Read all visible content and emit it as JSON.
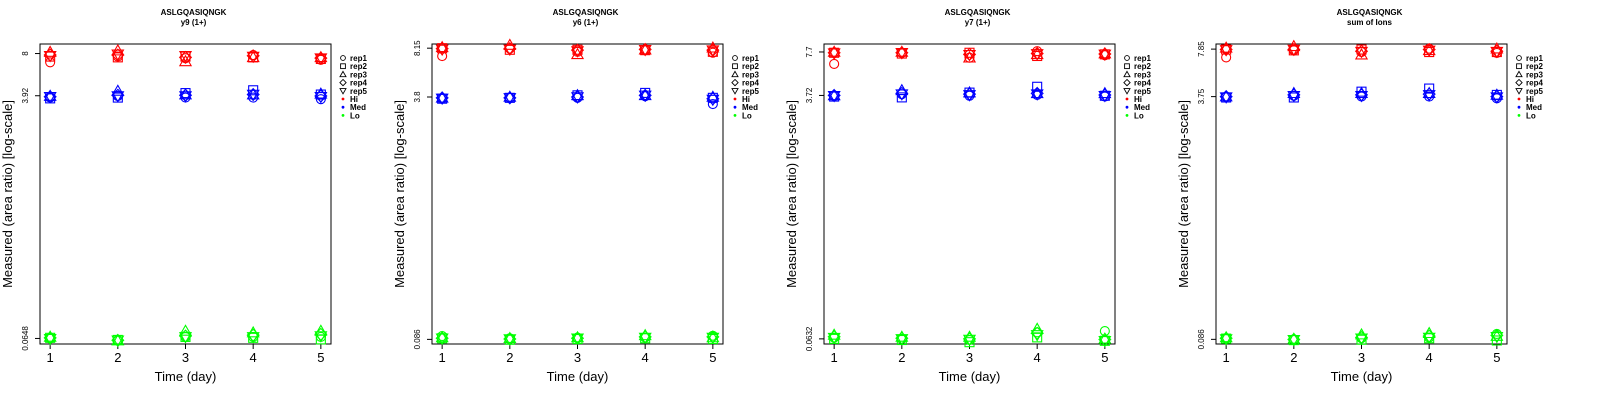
{
  "colors": {
    "Hi": "#ff0000",
    "Med": "#0000ff",
    "Lo": "#00ff00"
  },
  "legend": {
    "shapes": [
      {
        "label": "rep1",
        "marker": "circle"
      },
      {
        "label": "rep2",
        "marker": "square"
      },
      {
        "label": "rep3",
        "marker": "triangle-up"
      },
      {
        "label": "rep4",
        "marker": "diamond"
      },
      {
        "label": "rep5",
        "marker": "triangle-down"
      }
    ],
    "groups": [
      {
        "label": "Hi",
        "color": "#ff0000"
      },
      {
        "label": "Med",
        "color": "#0000ff"
      },
      {
        "label": "Lo",
        "color": "#00ff00"
      }
    ]
  },
  "chart_data": [
    {
      "type": "scatter",
      "title": "ASLGQASIQNGK",
      "subtitle": "y9 (1+)",
      "xlabel": "Time (day)",
      "ylabel": "Measured (area ratio) [log-scale]",
      "x": [
        1,
        2,
        3,
        4,
        5
      ],
      "yscale": "log",
      "ylim": [
        0.059,
        9.4
      ],
      "yticks": [
        0.0648,
        3.92,
        8
      ],
      "ytick_labels": [
        "0.0648",
        "3.92",
        "8"
      ],
      "series": [
        {
          "name": "rep1",
          "group": "Hi",
          "marker": "circle",
          "values": [
            6.9,
            7.6,
            7.4,
            7.8,
            7.2
          ]
        },
        {
          "name": "rep2",
          "group": "Hi",
          "marker": "square",
          "values": [
            7.6,
            7.5,
            7.6,
            7.5,
            7.3
          ]
        },
        {
          "name": "rep3",
          "group": "Hi",
          "marker": "triangle-up",
          "values": [
            8.2,
            8.4,
            7.0,
            7.5,
            7.5
          ]
        },
        {
          "name": "rep4",
          "group": "Hi",
          "marker": "diamond",
          "values": [
            7.8,
            7.8,
            7.5,
            7.7,
            7.4
          ]
        },
        {
          "name": "rep5",
          "group": "Hi",
          "marker": "triangle-down",
          "values": [
            7.7,
            7.9,
            7.7,
            7.6,
            7.4
          ]
        },
        {
          "name": "rep1",
          "group": "Med",
          "marker": "circle",
          "values": [
            3.8,
            3.9,
            3.8,
            3.8,
            3.7
          ]
        },
        {
          "name": "rep2",
          "group": "Med",
          "marker": "square",
          "values": [
            3.75,
            3.8,
            4.1,
            4.3,
            4.0
          ]
        },
        {
          "name": "rep3",
          "group": "Med",
          "marker": "triangle-up",
          "values": [
            3.9,
            4.25,
            4.0,
            4.0,
            4.05
          ]
        },
        {
          "name": "rep4",
          "group": "Med",
          "marker": "diamond",
          "values": [
            3.85,
            3.95,
            3.95,
            4.0,
            3.9
          ]
        },
        {
          "name": "rep5",
          "group": "Med",
          "marker": "triangle-down",
          "values": [
            3.85,
            3.9,
            3.9,
            4.0,
            3.85
          ]
        },
        {
          "name": "rep1",
          "group": "Lo",
          "marker": "circle",
          "values": [
            0.0648,
            0.0625,
            0.0665,
            0.0665,
            0.0665
          ]
        },
        {
          "name": "rep2",
          "group": "Lo",
          "marker": "square",
          "values": [
            0.0655,
            0.0632,
            0.0665,
            0.0655,
            0.0638
          ]
        },
        {
          "name": "rep3",
          "group": "Lo",
          "marker": "triangle-up",
          "values": [
            0.0665,
            0.0625,
            0.0735,
            0.0715,
            0.0735
          ]
        },
        {
          "name": "rep4",
          "group": "Lo",
          "marker": "diamond",
          "values": [
            0.0655,
            0.0628,
            0.0675,
            0.0685,
            0.0695
          ]
        },
        {
          "name": "rep5",
          "group": "Lo",
          "marker": "triangle-down",
          "values": [
            0.0645,
            0.0628,
            0.0665,
            0.0665,
            0.0675
          ]
        }
      ]
    },
    {
      "type": "scatter",
      "title": "ASLGQASIQNGK",
      "subtitle": "y6 (1+)",
      "xlabel": "Time (day)",
      "ylabel": "Measured (area ratio) [log-scale]",
      "x": [
        1,
        2,
        3,
        4,
        5
      ],
      "yscale": "log",
      "ylim": [
        0.08,
        8.7
      ],
      "yticks": [
        0.086,
        3.8,
        8.15
      ],
      "ytick_labels": [
        "0.086",
        "3.8",
        "8.15"
      ],
      "series": [
        {
          "name": "rep1",
          "group": "Hi",
          "marker": "circle",
          "values": [
            7.2,
            8.1,
            7.7,
            7.9,
            7.6
          ]
        },
        {
          "name": "rep2",
          "group": "Hi",
          "marker": "square",
          "values": [
            8.15,
            7.95,
            7.95,
            7.9,
            7.7
          ]
        },
        {
          "name": "rep3",
          "group": "Hi",
          "marker": "triangle-up",
          "values": [
            8.25,
            8.55,
            7.4,
            7.95,
            8.2
          ]
        },
        {
          "name": "rep4",
          "group": "Hi",
          "marker": "diamond",
          "values": [
            8.1,
            8.1,
            7.9,
            8.0,
            7.9
          ]
        },
        {
          "name": "rep5",
          "group": "Hi",
          "marker": "triangle-down",
          "values": [
            8.0,
            8.0,
            7.8,
            7.95,
            7.9
          ]
        },
        {
          "name": "rep1",
          "group": "Med",
          "marker": "circle",
          "values": [
            3.7,
            3.75,
            3.75,
            3.85,
            3.4
          ]
        },
        {
          "name": "rep2",
          "group": "Med",
          "marker": "square",
          "values": [
            3.7,
            3.75,
            3.9,
            4.05,
            3.75
          ]
        },
        {
          "name": "rep3",
          "group": "Med",
          "marker": "triangle-up",
          "values": [
            3.75,
            3.8,
            3.9,
            3.9,
            3.8
          ]
        },
        {
          "name": "rep4",
          "group": "Med",
          "marker": "diamond",
          "values": [
            3.75,
            3.75,
            3.8,
            3.9,
            3.7
          ]
        },
        {
          "name": "rep5",
          "group": "Med",
          "marker": "triangle-down",
          "values": [
            3.72,
            3.75,
            3.8,
            3.9,
            3.65
          ]
        },
        {
          "name": "rep1",
          "group": "Lo",
          "marker": "circle",
          "values": [
            0.0905,
            0.0875,
            0.0885,
            0.0885,
            0.091
          ]
        },
        {
          "name": "rep2",
          "group": "Lo",
          "marker": "square",
          "values": [
            0.0875,
            0.0855,
            0.0865,
            0.0875,
            0.0865
          ]
        },
        {
          "name": "rep3",
          "group": "Lo",
          "marker": "triangle-up",
          "values": [
            0.0885,
            0.0875,
            0.0885,
            0.0915,
            0.0885
          ]
        },
        {
          "name": "rep4",
          "group": "Lo",
          "marker": "diamond",
          "values": [
            0.0875,
            0.0865,
            0.0875,
            0.0895,
            0.0895
          ]
        },
        {
          "name": "rep5",
          "group": "Lo",
          "marker": "triangle-down",
          "values": [
            0.0875,
            0.0865,
            0.0875,
            0.0885,
            0.0885
          ]
        }
      ]
    },
    {
      "type": "scatter",
      "title": "ASLGQASIQNGK",
      "subtitle": "y7 (1+)",
      "xlabel": "Time (day)",
      "ylabel": "Measured (area ratio) [log-scale]",
      "x": [
        1,
        2,
        3,
        4,
        5
      ],
      "yscale": "log",
      "ylim": [
        0.058,
        8.8
      ],
      "yticks": [
        0.0632,
        3.72,
        7.7
      ],
      "ytick_labels": [
        "0.0632",
        "3.72",
        "7.7"
      ],
      "series": [
        {
          "name": "rep1",
          "group": "Hi",
          "marker": "circle",
          "values": [
            6.3,
            7.6,
            7.0,
            7.8,
            7.3
          ]
        },
        {
          "name": "rep2",
          "group": "Hi",
          "marker": "square",
          "values": [
            7.6,
            7.5,
            7.6,
            7.2,
            7.4
          ]
        },
        {
          "name": "rep3",
          "group": "Hi",
          "marker": "triangle-up",
          "values": [
            7.7,
            7.7,
            7.0,
            7.4,
            7.5
          ]
        },
        {
          "name": "rep4",
          "group": "Hi",
          "marker": "diamond",
          "values": [
            7.6,
            7.6,
            7.4,
            7.5,
            7.45
          ]
        },
        {
          "name": "rep5",
          "group": "Hi",
          "marker": "triangle-down",
          "values": [
            7.55,
            7.6,
            7.35,
            7.45,
            7.4
          ]
        },
        {
          "name": "rep1",
          "group": "Med",
          "marker": "circle",
          "values": [
            3.7,
            3.8,
            3.7,
            3.75,
            3.65
          ]
        },
        {
          "name": "rep2",
          "group": "Med",
          "marker": "square",
          "values": [
            3.65,
            3.6,
            3.9,
            4.3,
            3.7
          ]
        },
        {
          "name": "rep3",
          "group": "Med",
          "marker": "triangle-up",
          "values": [
            3.72,
            4.05,
            3.9,
            3.85,
            3.85
          ]
        },
        {
          "name": "rep4",
          "group": "Med",
          "marker": "diamond",
          "values": [
            3.72,
            3.85,
            3.8,
            3.85,
            3.75
          ]
        },
        {
          "name": "rep5",
          "group": "Med",
          "marker": "triangle-down",
          "values": [
            3.7,
            3.8,
            3.75,
            3.8,
            3.7
          ]
        },
        {
          "name": "rep1",
          "group": "Lo",
          "marker": "circle",
          "values": [
            0.0645,
            0.0632,
            0.062,
            0.0705,
            0.072
          ]
        },
        {
          "name": "rep2",
          "group": "Lo",
          "marker": "square",
          "values": [
            0.0632,
            0.062,
            0.0598,
            0.0648,
            0.0612
          ]
        },
        {
          "name": "rep3",
          "group": "Lo",
          "marker": "triangle-up",
          "values": [
            0.0675,
            0.0652,
            0.0652,
            0.0745,
            0.0632
          ]
        },
        {
          "name": "rep4",
          "group": "Lo",
          "marker": "diamond",
          "values": [
            0.0655,
            0.0638,
            0.0632,
            0.0695,
            0.0625
          ]
        },
        {
          "name": "rep5",
          "group": "Lo",
          "marker": "triangle-down",
          "values": [
            0.0645,
            0.0632,
            0.0625,
            0.0675,
            0.0612
          ]
        }
      ]
    },
    {
      "type": "scatter",
      "title": "ASLGQASIQNGK",
      "subtitle": "sum of Ions",
      "xlabel": "Time (day)",
      "ylabel": "Measured (area ratio) [log-scale]",
      "x": [
        1,
        2,
        3,
        4,
        5
      ],
      "yscale": "log",
      "ylim": [
        0.08,
        8.5
      ],
      "yticks": [
        0.086,
        3.75,
        7.85
      ],
      "ytick_labels": [
        "0.086",
        "3.75",
        "7.85"
      ],
      "series": [
        {
          "name": "rep1",
          "group": "Hi",
          "marker": "circle",
          "values": [
            6.9,
            7.7,
            7.5,
            7.9,
            7.4
          ]
        },
        {
          "name": "rep2",
          "group": "Hi",
          "marker": "square",
          "values": [
            7.8,
            7.7,
            7.8,
            7.5,
            7.5
          ]
        },
        {
          "name": "rep3",
          "group": "Hi",
          "marker": "triangle-up",
          "values": [
            8.0,
            8.2,
            7.2,
            7.7,
            7.9
          ]
        },
        {
          "name": "rep4",
          "group": "Hi",
          "marker": "diamond",
          "values": [
            7.8,
            7.8,
            7.6,
            7.8,
            7.6
          ]
        },
        {
          "name": "rep5",
          "group": "Hi",
          "marker": "triangle-down",
          "values": [
            7.75,
            7.8,
            7.55,
            7.7,
            7.55
          ]
        },
        {
          "name": "rep1",
          "group": "Med",
          "marker": "circle",
          "values": [
            3.75,
            3.8,
            3.75,
            3.75,
            3.65
          ]
        },
        {
          "name": "rep2",
          "group": "Med",
          "marker": "square",
          "values": [
            3.7,
            3.7,
            4.05,
            4.25,
            3.85
          ]
        },
        {
          "name": "rep3",
          "group": "Med",
          "marker": "triangle-up",
          "values": [
            3.75,
            3.95,
            3.95,
            3.95,
            3.85
          ]
        },
        {
          "name": "rep4",
          "group": "Med",
          "marker": "diamond",
          "values": [
            3.75,
            3.85,
            3.85,
            3.9,
            3.75
          ]
        },
        {
          "name": "rep5",
          "group": "Med",
          "marker": "triangle-down",
          "values": [
            3.72,
            3.8,
            3.8,
            3.85,
            3.72
          ]
        },
        {
          "name": "rep1",
          "group": "Lo",
          "marker": "circle",
          "values": [
            0.0875,
            0.086,
            0.0875,
            0.0885,
            0.0935
          ]
        },
        {
          "name": "rep2",
          "group": "Lo",
          "marker": "square",
          "values": [
            0.087,
            0.085,
            0.0855,
            0.0875,
            0.0845
          ]
        },
        {
          "name": "rep3",
          "group": "Lo",
          "marker": "triangle-up",
          "values": [
            0.0885,
            0.0865,
            0.0925,
            0.0945,
            0.0905
          ]
        },
        {
          "name": "rep4",
          "group": "Lo",
          "marker": "diamond",
          "values": [
            0.0875,
            0.0858,
            0.0885,
            0.0905,
            0.0915
          ]
        },
        {
          "name": "rep5",
          "group": "Lo",
          "marker": "triangle-down",
          "values": [
            0.0865,
            0.0855,
            0.0875,
            0.0885,
            0.0895
          ]
        }
      ]
    }
  ]
}
